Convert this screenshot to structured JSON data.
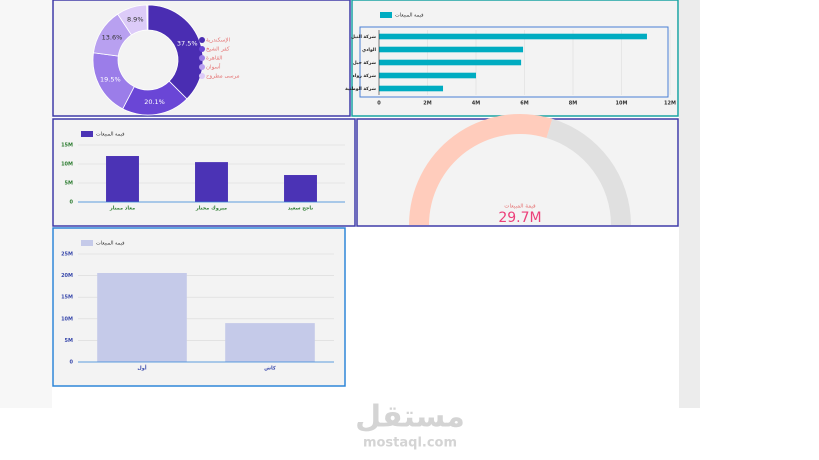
{
  "chart_data": [
    {
      "type": "pie",
      "categories": [
        "الإسكندرية",
        "كفر الشيخ",
        "القاهرة",
        "أسوان",
        "مرسى مطروح"
      ],
      "values": [
        37.5,
        20.1,
        19.5,
        13.6,
        8.9
      ],
      "value_labels": [
        "37.5%",
        "20.1%",
        "19.5%",
        "13.6%",
        "8.9%"
      ],
      "colors": [
        "#4a2db2",
        "#6a46d6",
        "#9b7de9",
        "#b8a0f0",
        "#dccbf8"
      ]
    },
    {
      "type": "hbar",
      "categories": [
        "شركة النيل",
        "الوادي",
        "شركة جبل",
        "شركة رواء",
        "شركة الوطنية"
      ],
      "series": [
        {
          "name": "قيمة المبيعات",
          "color": "#00acc1",
          "values": [
            11050000,
            5940000,
            5860000,
            4000000,
            2640000
          ]
        }
      ],
      "xlim": [
        0,
        12000000
      ],
      "xticks": [
        0,
        {
          "value": 2000000,
          "label": "2M"
        },
        {
          "value": 4000000,
          "label": "4M"
        },
        {
          "value": 6000000,
          "label": "6M"
        },
        {
          "value": 8000000,
          "label": "8M"
        },
        {
          "value": 10000000,
          "label": "10M"
        },
        {
          "value": 12000000,
          "label": "12M"
        }
      ],
      "grid": true
    },
    {
      "type": "bar",
      "categories": [
        "معاذ ممتاز",
        "مبروك مختار",
        "ناجح سعيد"
      ],
      "series": [
        {
          "name": "قيمة المبيعات",
          "color": "#4b33b5",
          "values": [
            12100000,
            10500000,
            7100000
          ]
        }
      ],
      "ylim": [
        0,
        15000000
      ],
      "yticks": [
        0,
        {
          "value": 5000000,
          "label": "5M"
        },
        {
          "value": 10000000,
          "label": "10M"
        },
        {
          "value": 15000000,
          "label": "15M"
        }
      ],
      "grid": true
    },
    {
      "type": "gauge",
      "title": "قيمة المبيعات",
      "value": 29700000,
      "value_label": "29.7M",
      "range": [
        0,
        50000000
      ],
      "colors": [
        "#ffccbc",
        "#e0e0e0"
      ]
    },
    {
      "type": "bar",
      "categories": [
        "أول",
        "كاش"
      ],
      "series": [
        {
          "name": "قيمة المبيعات",
          "color": "#c5cae9",
          "values": [
            20600000,
            9000000
          ]
        }
      ],
      "ylim": [
        0,
        25000000
      ],
      "yticks": [
        0,
        {
          "value": 5000000,
          "label": "5M"
        },
        {
          "value": 10000000,
          "label": "10M"
        },
        {
          "value": 15000000,
          "label": "15M"
        },
        {
          "value": 20000000,
          "label": "20M"
        },
        {
          "value": 25000000,
          "label": "25M"
        }
      ],
      "grid": true
    }
  ],
  "watermark": {
    "name": "مستقل",
    "url": "mostaql.com"
  }
}
